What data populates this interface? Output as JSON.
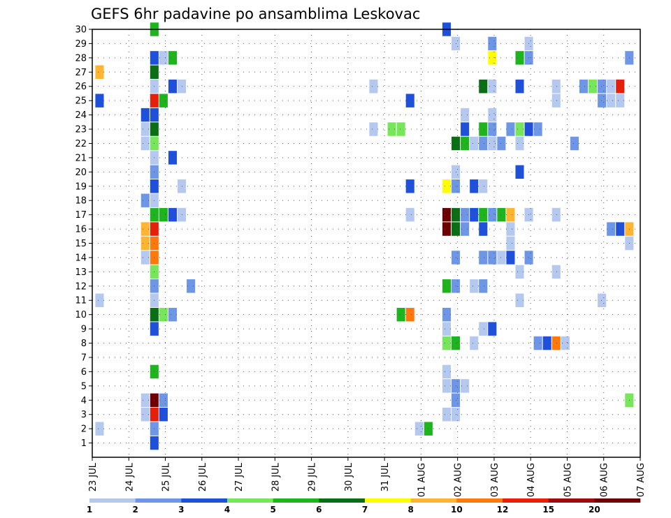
{
  "chart_data": {
    "type": "heatmap",
    "title": "GEFS 6hr padavine po ansamblima Leskovac",
    "y_ticks": [
      "1",
      "2",
      "3",
      "4",
      "5",
      "6",
      "7",
      "8",
      "9",
      "10",
      "11",
      "12",
      "13",
      "14",
      "15",
      "16",
      "17",
      "18",
      "19",
      "20",
      "21",
      "22",
      "23",
      "24",
      "25",
      "26",
      "27",
      "28",
      "29",
      "30"
    ],
    "x_ticks": [
      "23 JUL",
      "24 JUL",
      "25 JUL",
      "26 JUL",
      "27 JUL",
      "28 JUL",
      "29 JUL",
      "30 JUL",
      "31 JUL",
      "01 AUG",
      "02 AUG",
      "03 AUG",
      "04 AUG",
      "05 AUG",
      "06 AUG",
      "07 AUG"
    ],
    "x_range_days": [
      0,
      15
    ],
    "y_range": [
      0,
      30
    ],
    "grid": true,
    "colorbar_labels": [
      "1",
      "2",
      "3",
      "4",
      "5",
      "6",
      "7",
      "8",
      "10",
      "12",
      "15",
      "20"
    ],
    "colorbar_colors": [
      "#b4c8f0",
      "#6e96e6",
      "#1e50dc",
      "#78e65a",
      "#1eb41e",
      "#0a6e14",
      "#ffff00",
      "#ffb432",
      "#ff780a",
      "#e61e0a",
      "#a00a0a",
      "#6e0000"
    ],
    "cells_note": "each cell: [day_offset_from_23_JUL, member, color_index]",
    "cells": [
      [
        0.25,
        27,
        7
      ],
      [
        0.25,
        25,
        2
      ],
      [
        0.25,
        11,
        0
      ],
      [
        0.25,
        2,
        0
      ],
      [
        1.5,
        24,
        2
      ],
      [
        1.5,
        23,
        0
      ],
      [
        1.5,
        22,
        0
      ],
      [
        1.5,
        18,
        1
      ],
      [
        1.5,
        16,
        7
      ],
      [
        1.5,
        15,
        7
      ],
      [
        1.5,
        14,
        0
      ],
      [
        1.5,
        4,
        0
      ],
      [
        1.5,
        3,
        0
      ],
      [
        1.75,
        30,
        4
      ],
      [
        1.75,
        28,
        2
      ],
      [
        1.75,
        27,
        5
      ],
      [
        1.75,
        26,
        0
      ],
      [
        1.75,
        25,
        9
      ],
      [
        1.75,
        24,
        2
      ],
      [
        1.75,
        23,
        5
      ],
      [
        1.75,
        22,
        3
      ],
      [
        1.75,
        21,
        0
      ],
      [
        1.75,
        20,
        1
      ],
      [
        1.75,
        19,
        2
      ],
      [
        1.75,
        18,
        0
      ],
      [
        1.75,
        17,
        4
      ],
      [
        1.75,
        16,
        9
      ],
      [
        1.75,
        15,
        8
      ],
      [
        1.75,
        14,
        8
      ],
      [
        1.75,
        13,
        3
      ],
      [
        1.75,
        12,
        1
      ],
      [
        1.75,
        11,
        0
      ],
      [
        1.75,
        10,
        5
      ],
      [
        1.75,
        9,
        2
      ],
      [
        1.75,
        6,
        4
      ],
      [
        1.75,
        4,
        11
      ],
      [
        1.75,
        3,
        9
      ],
      [
        1.75,
        2,
        1
      ],
      [
        1.75,
        1,
        2
      ],
      [
        2.0,
        28,
        0
      ],
      [
        2.0,
        25,
        4
      ],
      [
        2.0,
        17,
        4
      ],
      [
        2.0,
        10,
        3
      ],
      [
        2.0,
        4,
        1
      ],
      [
        2.0,
        3,
        2
      ],
      [
        2.25,
        28,
        4
      ],
      [
        2.25,
        26,
        2
      ],
      [
        2.25,
        21,
        2
      ],
      [
        2.25,
        17,
        2
      ],
      [
        2.25,
        10,
        1
      ],
      [
        2.5,
        26,
        0
      ],
      [
        2.5,
        19,
        0
      ],
      [
        2.5,
        17,
        0
      ],
      [
        2.75,
        12,
        1
      ],
      [
        7.75,
        26,
        0
      ],
      [
        7.75,
        23,
        0
      ],
      [
        8.25,
        23,
        3
      ],
      [
        8.5,
        23,
        3
      ],
      [
        8.5,
        10,
        4
      ],
      [
        8.75,
        10,
        8
      ],
      [
        8.75,
        25,
        2
      ],
      [
        8.75,
        19,
        2
      ],
      [
        8.75,
        17,
        0
      ],
      [
        9.0,
        2,
        0
      ],
      [
        9.25,
        2,
        4
      ],
      [
        9.75,
        30,
        2
      ],
      [
        9.75,
        17,
        11
      ],
      [
        9.75,
        16,
        11
      ],
      [
        9.75,
        12,
        4
      ],
      [
        9.75,
        10,
        1
      ],
      [
        9.75,
        9,
        0
      ],
      [
        9.75,
        8,
        3
      ],
      [
        9.75,
        6,
        0
      ],
      [
        9.75,
        5,
        0
      ],
      [
        9.75,
        3,
        0
      ],
      [
        9.75,
        19,
        6
      ],
      [
        10.0,
        29,
        0
      ],
      [
        10.0,
        22,
        5
      ],
      [
        10.0,
        20,
        0
      ],
      [
        10.0,
        19,
        1
      ],
      [
        10.0,
        17,
        5
      ],
      [
        10.0,
        16,
        5
      ],
      [
        10.0,
        14,
        1
      ],
      [
        10.0,
        12,
        1
      ],
      [
        10.0,
        8,
        4
      ],
      [
        10.0,
        5,
        1
      ],
      [
        10.0,
        4,
        1
      ],
      [
        10.0,
        3,
        0
      ],
      [
        10.25,
        24,
        0
      ],
      [
        10.25,
        23,
        2
      ],
      [
        10.25,
        22,
        4
      ],
      [
        10.25,
        17,
        1
      ],
      [
        10.25,
        16,
        1
      ],
      [
        10.25,
        5,
        0
      ],
      [
        10.5,
        22,
        0
      ],
      [
        10.5,
        19,
        2
      ],
      [
        10.5,
        17,
        2
      ],
      [
        10.5,
        12,
        0
      ],
      [
        10.5,
        8,
        0
      ],
      [
        10.75,
        26,
        5
      ],
      [
        10.75,
        23,
        4
      ],
      [
        10.75,
        22,
        1
      ],
      [
        10.75,
        19,
        0
      ],
      [
        10.75,
        17,
        4
      ],
      [
        10.75,
        16,
        2
      ],
      [
        10.75,
        14,
        1
      ],
      [
        10.75,
        12,
        1
      ],
      [
        10.75,
        9,
        0
      ],
      [
        11.0,
        29,
        1
      ],
      [
        11.0,
        28,
        6
      ],
      [
        11.0,
        26,
        0
      ],
      [
        11.0,
        24,
        0
      ],
      [
        11.0,
        23,
        1
      ],
      [
        11.0,
        22,
        0
      ],
      [
        11.0,
        17,
        1
      ],
      [
        11.0,
        14,
        1
      ],
      [
        11.0,
        9,
        2
      ],
      [
        11.25,
        22,
        1
      ],
      [
        11.25,
        17,
        4
      ],
      [
        11.25,
        14,
        0
      ],
      [
        11.5,
        23,
        1
      ],
      [
        11.5,
        17,
        7
      ],
      [
        11.5,
        16,
        0
      ],
      [
        11.5,
        15,
        0
      ],
      [
        11.5,
        14,
        2
      ],
      [
        11.75,
        28,
        4
      ],
      [
        11.75,
        26,
        2
      ],
      [
        11.75,
        23,
        3
      ],
      [
        11.75,
        22,
        0
      ],
      [
        11.75,
        20,
        2
      ],
      [
        11.75,
        13,
        0
      ],
      [
        11.75,
        11,
        0
      ],
      [
        12.0,
        29,
        0
      ],
      [
        12.0,
        28,
        1
      ],
      [
        12.0,
        23,
        2
      ],
      [
        12.0,
        17,
        0
      ],
      [
        12.0,
        14,
        1
      ],
      [
        12.25,
        23,
        1
      ],
      [
        12.25,
        8,
        1
      ],
      [
        12.5,
        8,
        2
      ],
      [
        12.75,
        8,
        8
      ],
      [
        13.0,
        8,
        0
      ],
      [
        12.75,
        26,
        0
      ],
      [
        12.75,
        25,
        0
      ],
      [
        12.75,
        17,
        0
      ],
      [
        12.75,
        13,
        0
      ],
      [
        13.25,
        22,
        1
      ],
      [
        13.5,
        26,
        1
      ],
      [
        13.75,
        26,
        3
      ],
      [
        14.0,
        26,
        1
      ],
      [
        14.0,
        25,
        1
      ],
      [
        14.0,
        11,
        0
      ],
      [
        14.25,
        26,
        0
      ],
      [
        14.25,
        25,
        0
      ],
      [
        14.5,
        26,
        9
      ],
      [
        14.5,
        25,
        0
      ],
      [
        14.25,
        16,
        1
      ],
      [
        14.5,
        16,
        2
      ],
      [
        14.75,
        16,
        7
      ],
      [
        14.75,
        28,
        1
      ],
      [
        14.75,
        15,
        0
      ],
      [
        14.75,
        4,
        3
      ]
    ]
  }
}
